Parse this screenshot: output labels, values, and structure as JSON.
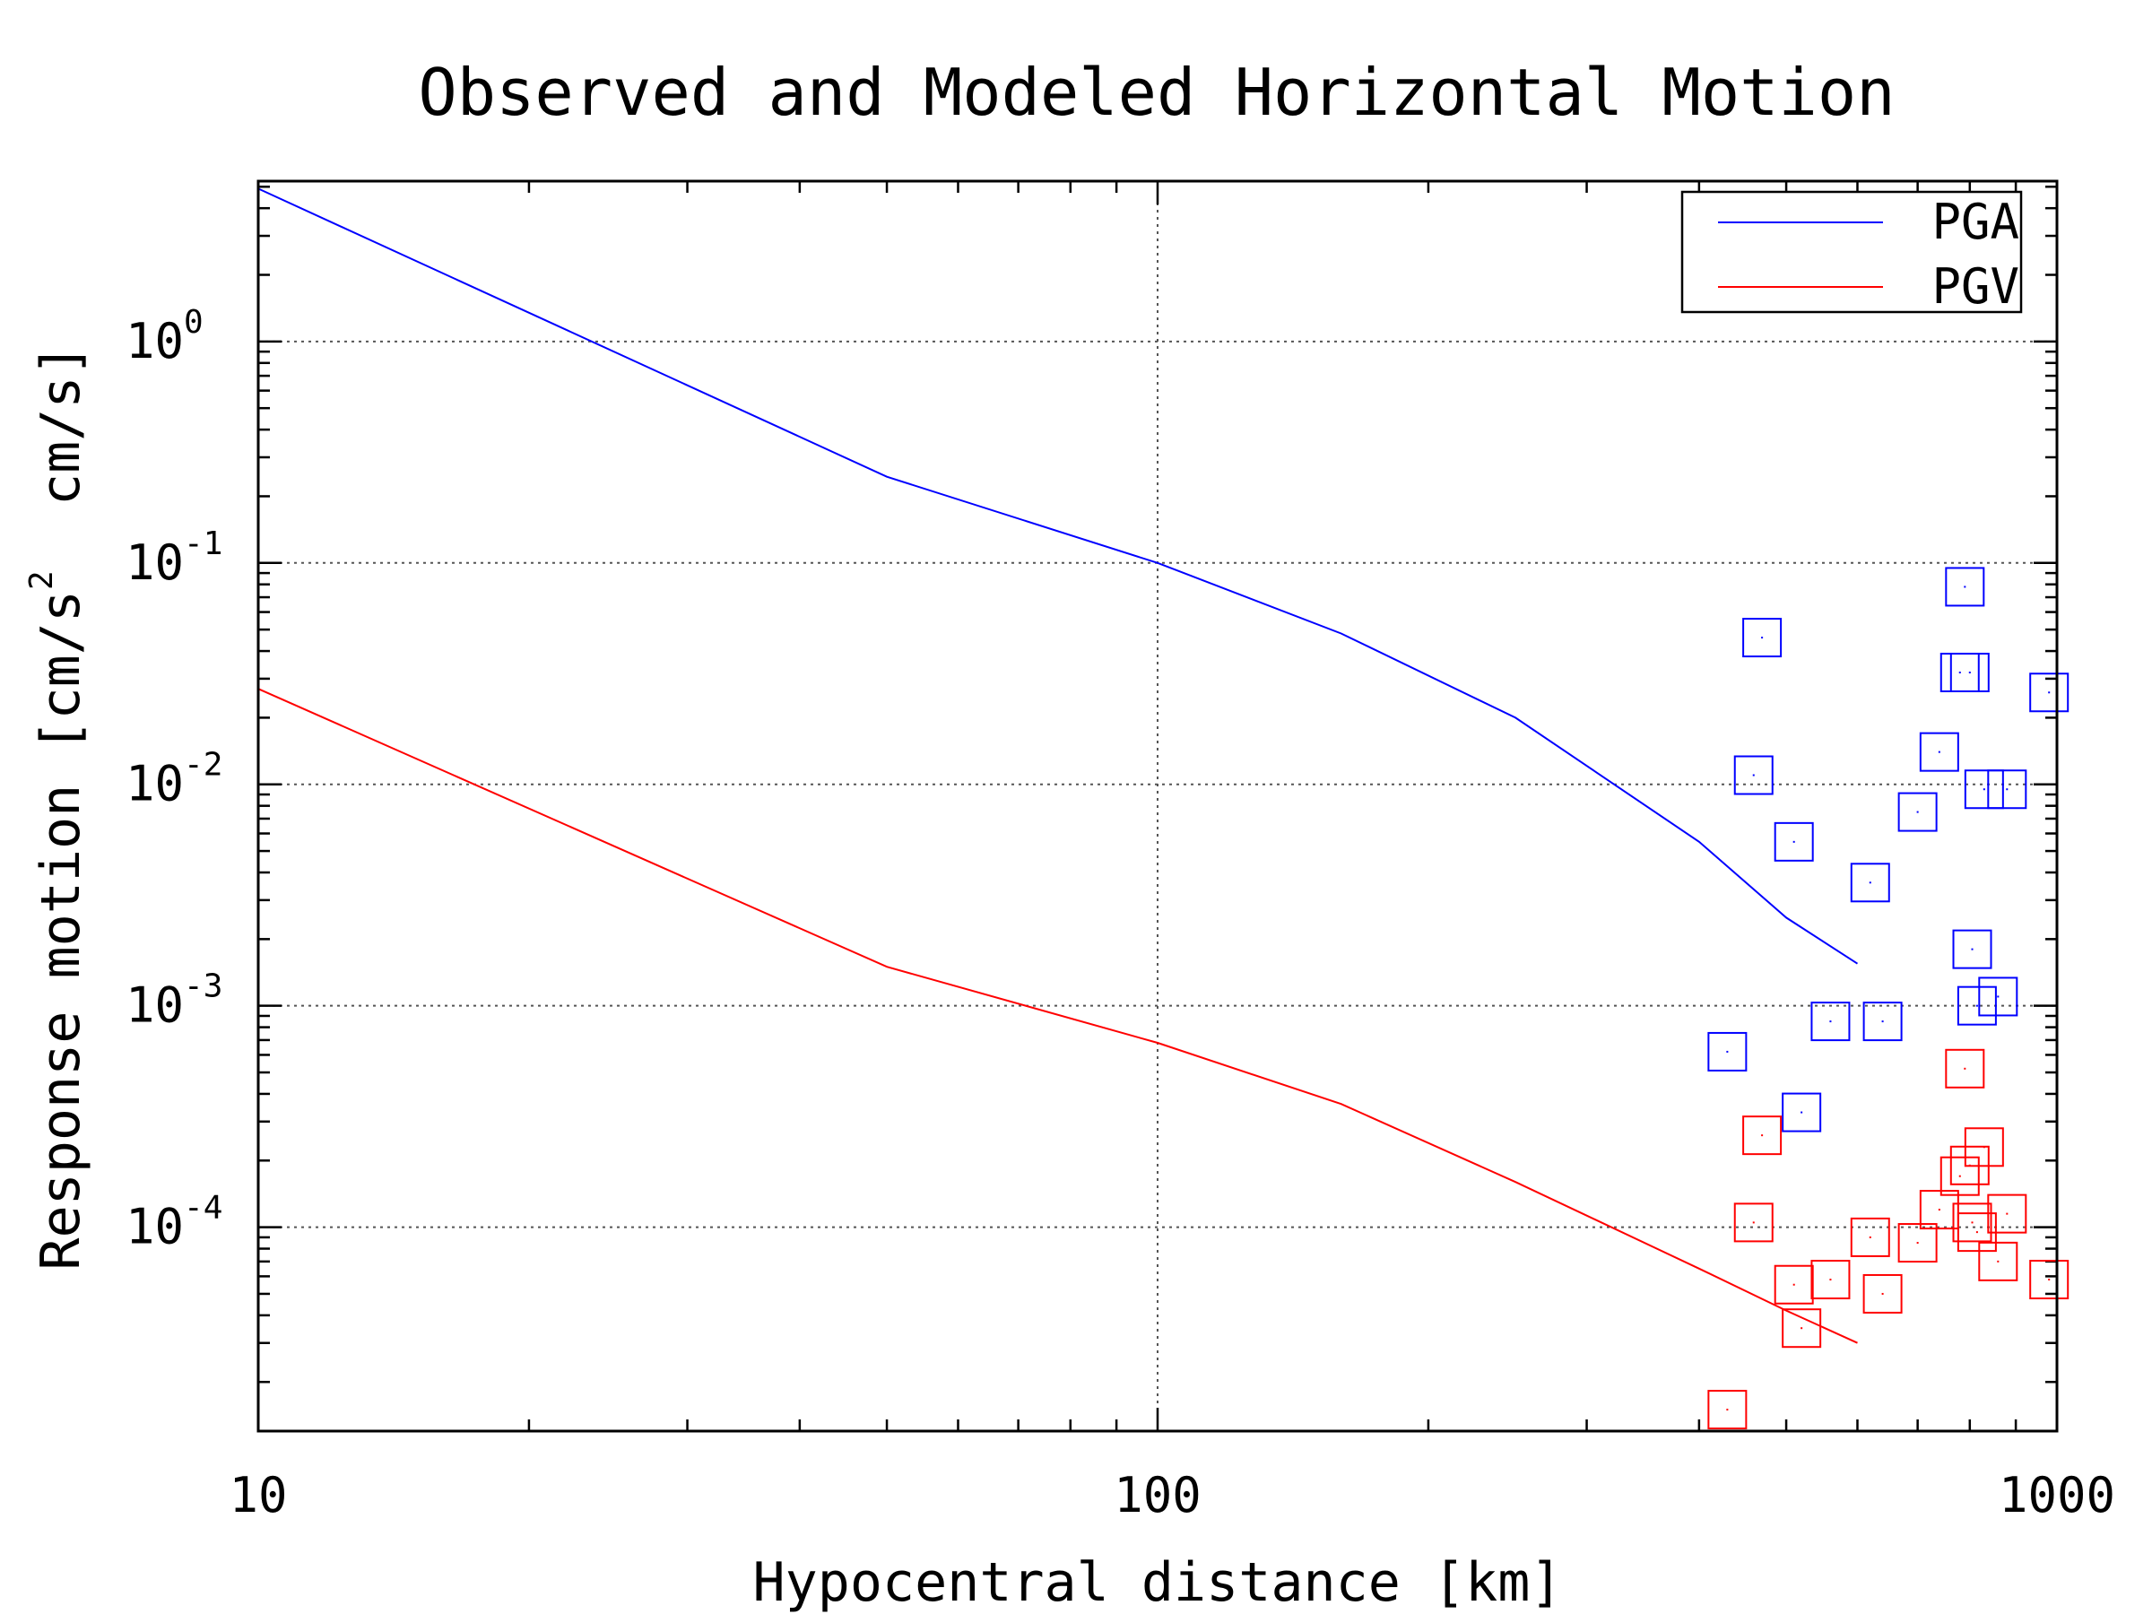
{
  "chart_data": {
    "type": "line",
    "title": "Observed and Modeled Horizontal Motion",
    "xlabel": "Hypocentral distance [km]",
    "ylabel": "Response motion [cm/s2  cm/s]",
    "ylabel_parts": {
      "pre": "Response motion [cm/s",
      "sup": "2",
      "post": "  cm/s]"
    },
    "xscale": "log",
    "yscale": "log",
    "xlim": [
      10,
      1000
    ],
    "ylim": [
      1.2e-05,
      5.3
    ],
    "x_ticks": [
      {
        "value": 10,
        "label": "10"
      },
      {
        "value": 100,
        "label": "100"
      },
      {
        "value": 1000,
        "label": "1000"
      }
    ],
    "y_ticks": [
      {
        "value": 1,
        "base": "10",
        "exp": "0"
      },
      {
        "value": 0.1,
        "base": "10",
        "exp": "-1"
      },
      {
        "value": 0.01,
        "base": "10",
        "exp": "-2"
      },
      {
        "value": 0.001,
        "base": "10",
        "exp": "-3"
      },
      {
        "value": 0.0001,
        "base": "10",
        "exp": "-4"
      }
    ],
    "grid": true,
    "legend": {
      "position": "top-right"
    },
    "series": [
      {
        "name": "PGA",
        "color": "#0000ff",
        "kind": "line",
        "x": [
          10,
          50,
          100,
          160,
          250,
          400,
          500,
          600
        ],
        "y": [
          4.9,
          0.245,
          0.1,
          0.048,
          0.02,
          0.0055,
          0.0025,
          0.00155
        ]
      },
      {
        "name": "PGV",
        "color": "#ff0000",
        "kind": "line",
        "x": [
          10,
          50,
          100,
          160,
          250,
          400,
          500,
          600
        ],
        "y": [
          0.027,
          0.0015,
          0.00068,
          0.00036,
          0.00016,
          6.5e-05,
          4.2e-05,
          3e-05
        ]
      },
      {
        "color": "#0000ff",
        "kind": "scatter",
        "marker": "square",
        "x": [
          430,
          460,
          470,
          510,
          520,
          560,
          620,
          640,
          700,
          740,
          780,
          790,
          800,
          805,
          815,
          830,
          860,
          880,
          980
        ],
        "y": [
          0.00062,
          0.011,
          0.046,
          0.0055,
          0.00033,
          0.00085,
          0.0036,
          0.00085,
          0.0075,
          0.014,
          0.032,
          0.078,
          0.032,
          0.0018,
          0.001,
          0.0095,
          0.0011,
          0.0095,
          0.026
        ]
      },
      {
        "color": "#ff0000",
        "kind": "scatter",
        "marker": "square",
        "x": [
          430,
          460,
          470,
          510,
          520,
          560,
          620,
          640,
          700,
          740,
          780,
          790,
          800,
          805,
          815,
          830,
          860,
          880,
          980
        ],
        "y": [
          1.5e-05,
          0.000105,
          0.00026,
          5.5e-05,
          3.5e-05,
          5.8e-05,
          9e-05,
          5e-05,
          8.5e-05,
          0.00012,
          0.00017,
          0.00052,
          0.00019,
          0.000105,
          9.5e-05,
          0.00023,
          7e-05,
          0.000115,
          5.8e-05
        ]
      }
    ]
  }
}
